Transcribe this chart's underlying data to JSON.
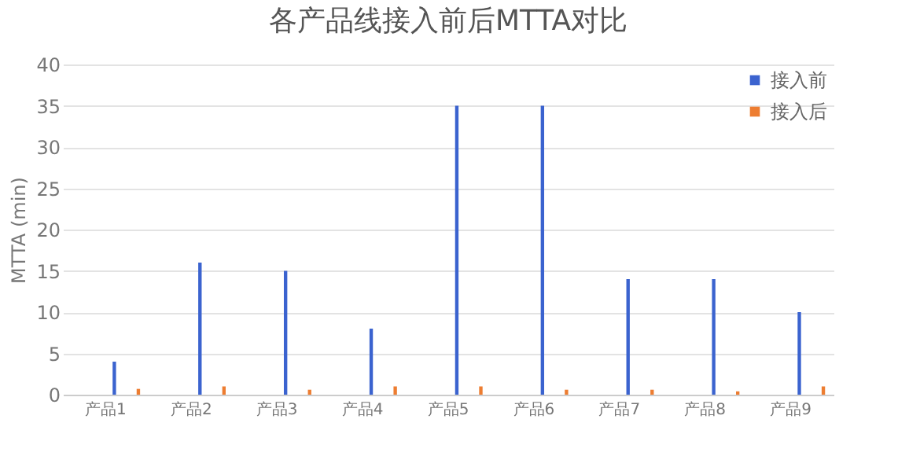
{
  "chart_data": {
    "type": "bar",
    "title": "各产品线接入前后MTTA对比",
    "ylabel": "MTTA (min)",
    "categories": [
      "产品1",
      "产品2",
      "产品3",
      "产品4",
      "产品5",
      "产品6",
      "产品7",
      "产品8",
      "产品9"
    ],
    "series": [
      {
        "name": "接入前",
        "color": "#3b63cf",
        "values": [
          4,
          16,
          15,
          8,
          35,
          35,
          14,
          14,
          10
        ]
      },
      {
        "name": "接入后",
        "color": "#ed7d31",
        "values": [
          0.7,
          1,
          0.6,
          1,
          1,
          0.6,
          0.6,
          0.4,
          1
        ]
      }
    ],
    "ylim": [
      0,
      40
    ],
    "yticks": [
      0,
      5,
      10,
      15,
      20,
      25,
      30,
      35,
      40
    ],
    "grid": "y",
    "legend": "top right"
  }
}
